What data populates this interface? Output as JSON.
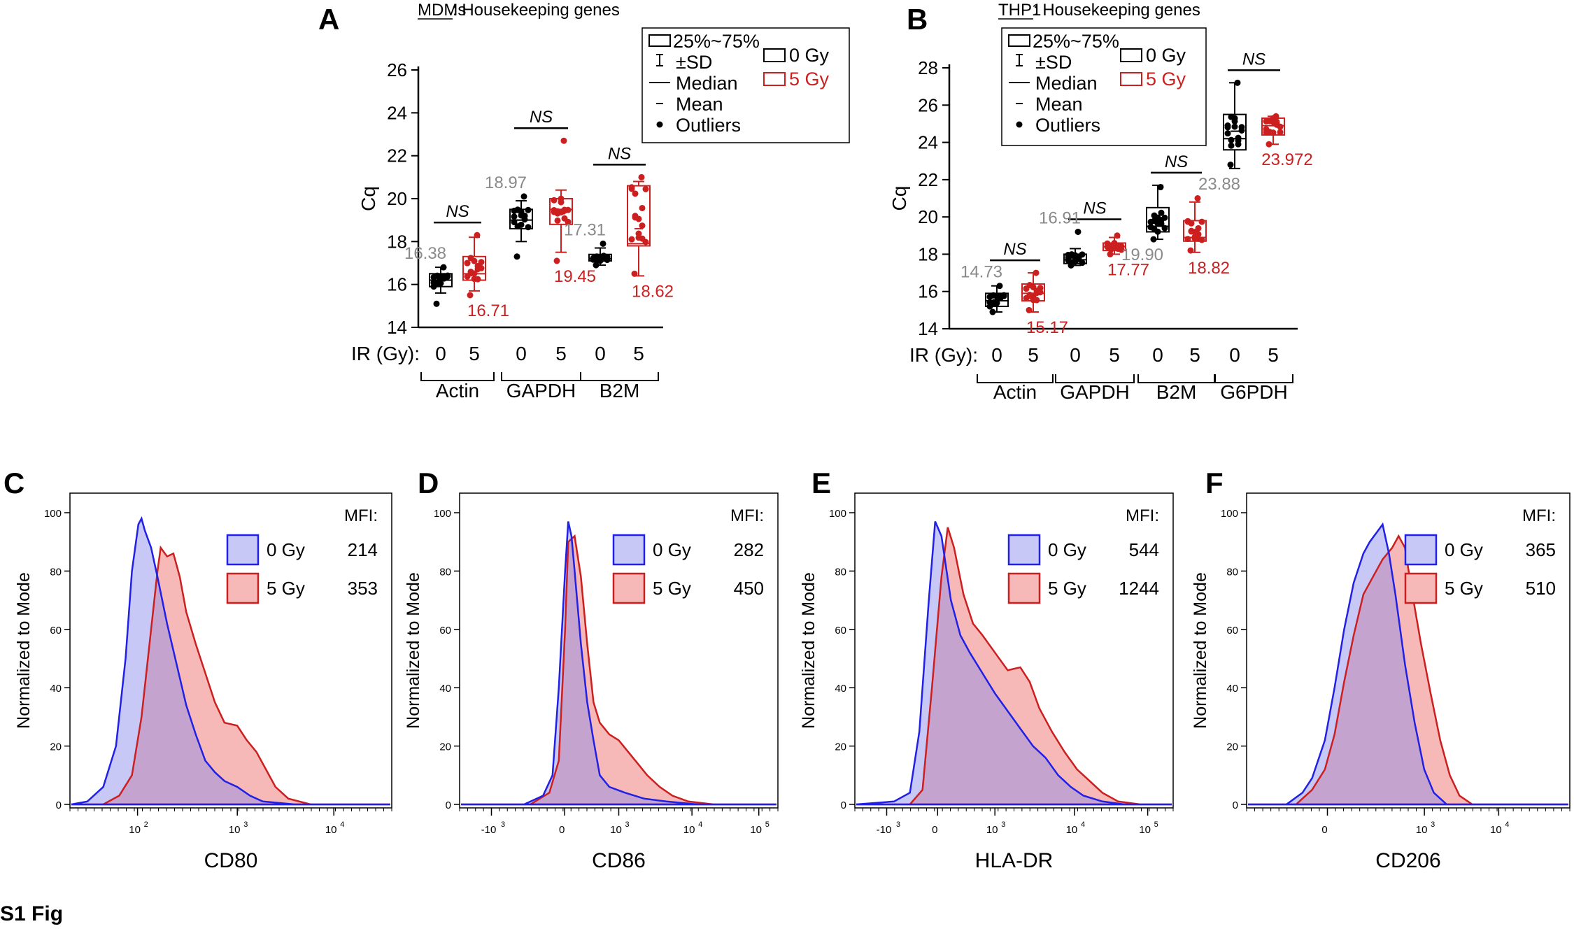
{
  "figure_label": "S1 Fig",
  "colors": {
    "black": "#000000",
    "red": "#cc1f1f",
    "gray": "#8a8a8a",
    "blue": "#2020e6",
    "blue_fill": "#c8c8f6",
    "red_fill": "#f7b8b8",
    "overlap_fill": "#c5a3cf"
  },
  "chart_data": [
    {
      "panel": "A",
      "type": "box",
      "title_underlined": "MDMs",
      "title_rest": ": Housekeeping genes",
      "ylabel": "Cq",
      "ylim": [
        14,
        26
      ],
      "yticks": [
        "14",
        "16",
        "18",
        "20",
        "22",
        "24",
        "26"
      ],
      "ir_label": "IR (Gy):",
      "dose_labels": [
        "0",
        "5"
      ],
      "legend_items": [
        "25%~75%",
        "±SD",
        "Median",
        "Mean",
        "Outliers"
      ],
      "legend_groups": [
        "0 Gy",
        "5 Gy"
      ],
      "sig_label": "NS",
      "groups": [
        {
          "gene": "Actin",
          "series": [
            {
              "dose": "0",
              "q1": 15.9,
              "q3": 16.5,
              "median": 16.2,
              "mean": 16.25,
              "sd_low": 15.6,
              "sd_high": 16.8,
              "min_pt": 15.1,
              "max_pt": 16.8,
              "annot": "16.38",
              "annot_pos": "above"
            },
            {
              "dose": "5",
              "q1": 16.2,
              "q3": 17.3,
              "median": 16.5,
              "mean": 16.6,
              "sd_low": 15.7,
              "sd_high": 18.2,
              "min_pt": 15.5,
              "max_pt": 18.3,
              "annot": "16.71",
              "annot_pos": "below"
            }
          ]
        },
        {
          "gene": "GAPDH",
          "series": [
            {
              "dose": "0",
              "q1": 18.6,
              "q3": 19.5,
              "median": 19.0,
              "mean": 19.0,
              "sd_low": 18.0,
              "sd_high": 19.9,
              "min_pt": 17.3,
              "max_pt": 20.1,
              "annot": "18.97",
              "annot_pos": "above"
            },
            {
              "dose": "5",
              "q1": 18.8,
              "q3": 20.0,
              "median": 19.5,
              "mean": 19.3,
              "sd_low": 17.5,
              "sd_high": 20.4,
              "min_pt": 17.1,
              "max_pt": 22.7,
              "annot": "19.45",
              "annot_pos": "below"
            }
          ]
        },
        {
          "gene": "B2M",
          "series": [
            {
              "dose": "0",
              "q1": 17.1,
              "q3": 17.4,
              "median": 17.2,
              "mean": 17.25,
              "sd_low": 16.9,
              "sd_high": 17.7,
              "min_pt": 16.9,
              "max_pt": 17.9,
              "annot": "17.31",
              "annot_pos": "above"
            },
            {
              "dose": "5",
              "q1": 17.8,
              "q3": 20.6,
              "median": 17.9,
              "mean": 18.6,
              "sd_low": 16.4,
              "sd_high": 20.8,
              "min_pt": 16.5,
              "max_pt": 21.0,
              "annot": "18.62",
              "annot_pos": "below"
            }
          ]
        }
      ]
    },
    {
      "panel": "B",
      "type": "box",
      "title_underlined": "THP1",
      "title_rest": ": Housekeeping genes",
      "ylabel": "Cq",
      "ylim": [
        14,
        28
      ],
      "yticks": [
        "14",
        "16",
        "18",
        "20",
        "22",
        "24",
        "26",
        "28"
      ],
      "ir_label": "IR (Gy):",
      "dose_labels": [
        "0",
        "5"
      ],
      "legend_items": [
        "25%~75%",
        "±SD",
        "Median",
        "Mean",
        "Outliers"
      ],
      "legend_groups": [
        "0 Gy",
        "5 Gy"
      ],
      "sig_label": "NS",
      "groups": [
        {
          "gene": "Actin",
          "series": [
            {
              "dose": "0",
              "q1": 15.2,
              "q3": 15.9,
              "median": 15.5,
              "mean": 15.55,
              "sd_low": 14.9,
              "sd_high": 16.3,
              "min_pt": 14.9,
              "max_pt": 16.3,
              "annot": "14.73",
              "annot_pos": "above"
            },
            {
              "dose": "5",
              "q1": 15.5,
              "q3": 16.4,
              "median": 15.9,
              "mean": 15.9,
              "sd_low": 14.9,
              "sd_high": 17.0,
              "min_pt": 15.0,
              "max_pt": 17.0,
              "annot": "15.17",
              "annot_pos": "below"
            }
          ]
        },
        {
          "gene": "GAPDH",
          "series": [
            {
              "dose": "0",
              "q1": 17.5,
              "q3": 18.0,
              "median": 17.7,
              "mean": 17.8,
              "sd_low": 17.4,
              "sd_high": 18.3,
              "min_pt": 17.4,
              "max_pt": 19.2,
              "annot": "16.91",
              "annot_pos": "above"
            },
            {
              "dose": "5",
              "q1": 18.2,
              "q3": 18.6,
              "median": 18.4,
              "mean": 18.4,
              "sd_low": 18.0,
              "sd_high": 18.9,
              "min_pt": 18.0,
              "max_pt": 19.0,
              "annot": "17.77",
              "annot_pos": "below"
            }
          ]
        },
        {
          "gene": "B2M",
          "series": [
            {
              "dose": "0",
              "q1": 19.2,
              "q3": 20.5,
              "median": 19.5,
              "mean": 19.8,
              "sd_low": 18.8,
              "sd_high": 21.7,
              "min_pt": 18.8,
              "max_pt": 21.6,
              "annot": "19.90",
              "annot_pos": "below"
            },
            {
              "dose": "5",
              "q1": 18.7,
              "q3": 19.8,
              "median": 18.9,
              "mean": 19.2,
              "sd_low": 18.1,
              "sd_high": 20.8,
              "min_pt": 18.2,
              "max_pt": 21.0,
              "annot": "18.82",
              "annot_pos": "below"
            }
          ]
        },
        {
          "gene": "G6PDH",
          "series": [
            {
              "dose": "0",
              "q1": 23.6,
              "q3": 25.5,
              "median": 24.2,
              "mean": 24.6,
              "sd_low": 22.6,
              "sd_high": 27.2,
              "min_pt": 22.8,
              "max_pt": 27.2,
              "annot": "23.88",
              "annot_pos": "below"
            },
            {
              "dose": "5",
              "q1": 24.4,
              "q3": 25.3,
              "median": 24.9,
              "mean": 24.9,
              "sd_low": 23.9,
              "sd_high": 25.4,
              "min_pt": 23.9,
              "max_pt": 25.4,
              "annot": "23.972",
              "annot_pos": "below"
            }
          ]
        }
      ]
    },
    {
      "panel": "C",
      "type": "histogram",
      "marker": "CD80",
      "ylabel": "Normalized to Mode",
      "ylim": [
        0,
        100
      ],
      "yticks": [
        "0",
        "20",
        "40",
        "60",
        "80",
        "100"
      ],
      "xticks": [
        {
          "base": "10",
          "exp": "2"
        },
        {
          "base": "10",
          "exp": "3"
        },
        {
          "base": "10",
          "exp": "4"
        }
      ],
      "xtick_pos": [
        0.21,
        0.52,
        0.82
      ],
      "mfi_label": "MFI:",
      "legend": [
        {
          "label": "0 Gy",
          "mfi": "214"
        },
        {
          "label": "5 Gy",
          "mfi": "353"
        }
      ],
      "curve_0gy": [
        [
          0.0,
          0
        ],
        [
          0.05,
          1
        ],
        [
          0.1,
          6
        ],
        [
          0.14,
          20
        ],
        [
          0.17,
          50
        ],
        [
          0.19,
          80
        ],
        [
          0.21,
          96
        ],
        [
          0.22,
          98
        ],
        [
          0.23,
          94
        ],
        [
          0.25,
          88
        ],
        [
          0.27,
          78
        ],
        [
          0.3,
          62
        ],
        [
          0.33,
          48
        ],
        [
          0.36,
          34
        ],
        [
          0.39,
          24
        ],
        [
          0.42,
          15
        ],
        [
          0.45,
          11
        ],
        [
          0.48,
          8
        ],
        [
          0.52,
          6
        ],
        [
          0.56,
          3
        ],
        [
          0.6,
          1
        ],
        [
          0.7,
          0
        ],
        [
          1.0,
          0
        ]
      ],
      "curve_5gy": [
        [
          0.0,
          0
        ],
        [
          0.1,
          0
        ],
        [
          0.15,
          3
        ],
        [
          0.19,
          10
        ],
        [
          0.22,
          30
        ],
        [
          0.25,
          60
        ],
        [
          0.27,
          80
        ],
        [
          0.28,
          88
        ],
        [
          0.3,
          85
        ],
        [
          0.32,
          86
        ],
        [
          0.34,
          78
        ],
        [
          0.36,
          66
        ],
        [
          0.39,
          55
        ],
        [
          0.42,
          45
        ],
        [
          0.45,
          35
        ],
        [
          0.48,
          28
        ],
        [
          0.52,
          27
        ],
        [
          0.55,
          22
        ],
        [
          0.58,
          18
        ],
        [
          0.61,
          12
        ],
        [
          0.64,
          6
        ],
        [
          0.68,
          2
        ],
        [
          0.75,
          0
        ],
        [
          1.0,
          0
        ]
      ]
    },
    {
      "panel": "D",
      "type": "histogram",
      "marker": "CD86",
      "ylabel": "Normalized to Mode",
      "ylim": [
        0,
        100
      ],
      "yticks": [
        "0",
        "20",
        "40",
        "60",
        "80",
        "100"
      ],
      "xticks": [
        {
          "base": "-10",
          "exp": "3"
        },
        {
          "base": "0",
          "exp": ""
        },
        {
          "base": "10",
          "exp": "3"
        },
        {
          "base": "10",
          "exp": "4"
        },
        {
          "base": "10",
          "exp": "5"
        }
      ],
      "xtick_pos": [
        0.1,
        0.33,
        0.5,
        0.73,
        0.94
      ],
      "mfi_label": "MFI:",
      "legend": [
        {
          "label": "0 Gy",
          "mfi": "282"
        },
        {
          "label": "5 Gy",
          "mfi": "450"
        }
      ],
      "curve_0gy": [
        [
          0.0,
          0
        ],
        [
          0.2,
          0
        ],
        [
          0.26,
          3
        ],
        [
          0.29,
          10
        ],
        [
          0.31,
          40
        ],
        [
          0.33,
          80
        ],
        [
          0.34,
          97
        ],
        [
          0.35,
          92
        ],
        [
          0.36,
          80
        ],
        [
          0.38,
          55
        ],
        [
          0.4,
          35
        ],
        [
          0.42,
          22
        ],
        [
          0.44,
          10
        ],
        [
          0.47,
          6
        ],
        [
          0.52,
          4
        ],
        [
          0.58,
          2
        ],
        [
          0.65,
          1
        ],
        [
          0.75,
          0
        ],
        [
          1.0,
          0
        ]
      ],
      "curve_5gy": [
        [
          0.0,
          0
        ],
        [
          0.22,
          0
        ],
        [
          0.28,
          4
        ],
        [
          0.31,
          15
        ],
        [
          0.33,
          60
        ],
        [
          0.34,
          90
        ],
        [
          0.36,
          92
        ],
        [
          0.38,
          78
        ],
        [
          0.4,
          55
        ],
        [
          0.42,
          35
        ],
        [
          0.44,
          28
        ],
        [
          0.47,
          24
        ],
        [
          0.5,
          22
        ],
        [
          0.53,
          18
        ],
        [
          0.56,
          14
        ],
        [
          0.59,
          10
        ],
        [
          0.63,
          6
        ],
        [
          0.67,
          3
        ],
        [
          0.72,
          1
        ],
        [
          0.8,
          0
        ],
        [
          1.0,
          0
        ]
      ]
    },
    {
      "panel": "E",
      "type": "histogram",
      "marker": "HLA-DR",
      "ylabel": "Normalized to Mode",
      "ylim": [
        0,
        100
      ],
      "yticks": [
        "0",
        "20",
        "40",
        "60",
        "80",
        "100"
      ],
      "xticks": [
        {
          "base": "-10",
          "exp": "3"
        },
        {
          "base": "0",
          "exp": ""
        },
        {
          "base": "10",
          "exp": "3"
        },
        {
          "base": "10",
          "exp": "4"
        },
        {
          "base": "10",
          "exp": "5"
        }
      ],
      "xtick_pos": [
        0.1,
        0.26,
        0.44,
        0.69,
        0.92
      ],
      "mfi_label": "MFI:",
      "legend": [
        {
          "label": "0 Gy",
          "mfi": "544"
        },
        {
          "label": "5 Gy",
          "mfi": "1244"
        }
      ],
      "curve_0gy": [
        [
          0.0,
          0
        ],
        [
          0.12,
          1
        ],
        [
          0.17,
          4
        ],
        [
          0.2,
          25
        ],
        [
          0.23,
          70
        ],
        [
          0.25,
          97
        ],
        [
          0.27,
          92
        ],
        [
          0.3,
          70
        ],
        [
          0.33,
          58
        ],
        [
          0.36,
          52
        ],
        [
          0.4,
          45
        ],
        [
          0.44,
          38
        ],
        [
          0.48,
          32
        ],
        [
          0.52,
          26
        ],
        [
          0.56,
          20
        ],
        [
          0.6,
          16
        ],
        [
          0.64,
          10
        ],
        [
          0.68,
          6
        ],
        [
          0.72,
          3
        ],
        [
          0.78,
          1
        ],
        [
          0.85,
          0
        ],
        [
          1.0,
          0
        ]
      ],
      "curve_5gy": [
        [
          0.0,
          0
        ],
        [
          0.17,
          0
        ],
        [
          0.21,
          5
        ],
        [
          0.24,
          40
        ],
        [
          0.27,
          78
        ],
        [
          0.29,
          95
        ],
        [
          0.31,
          88
        ],
        [
          0.34,
          72
        ],
        [
          0.37,
          62
        ],
        [
          0.4,
          58
        ],
        [
          0.44,
          52
        ],
        [
          0.48,
          46
        ],
        [
          0.52,
          47
        ],
        [
          0.55,
          42
        ],
        [
          0.58,
          33
        ],
        [
          0.62,
          25
        ],
        [
          0.66,
          18
        ],
        [
          0.7,
          12
        ],
        [
          0.74,
          8
        ],
        [
          0.78,
          4
        ],
        [
          0.83,
          1
        ],
        [
          0.9,
          0
        ],
        [
          1.0,
          0
        ]
      ]
    },
    {
      "panel": "F",
      "type": "histogram",
      "marker": "CD206",
      "ylabel": "Normalized to Mode",
      "ylim": [
        0,
        100
      ],
      "yticks": [
        "0",
        "20",
        "40",
        "60",
        "80",
        "100"
      ],
      "xticks": [
        {
          "base": "0",
          "exp": ""
        },
        {
          "base": "10",
          "exp": "3"
        },
        {
          "base": "10",
          "exp": "4"
        }
      ],
      "xtick_pos": [
        0.25,
        0.55,
        0.78
      ],
      "mfi_label": "MFI:",
      "legend": [
        {
          "label": "0 Gy",
          "mfi": "365"
        },
        {
          "label": "5 Gy",
          "mfi": "510"
        }
      ],
      "curve_0gy": [
        [
          0.0,
          0
        ],
        [
          0.12,
          0
        ],
        [
          0.17,
          4
        ],
        [
          0.2,
          9
        ],
        [
          0.24,
          22
        ],
        [
          0.27,
          40
        ],
        [
          0.3,
          60
        ],
        [
          0.33,
          76
        ],
        [
          0.36,
          86
        ],
        [
          0.38,
          90
        ],
        [
          0.4,
          93
        ],
        [
          0.42,
          96
        ],
        [
          0.44,
          86
        ],
        [
          0.46,
          72
        ],
        [
          0.49,
          48
        ],
        [
          0.52,
          28
        ],
        [
          0.55,
          12
        ],
        [
          0.58,
          4
        ],
        [
          0.62,
          0
        ],
        [
          1.0,
          0
        ]
      ],
      "curve_5gy": [
        [
          0.0,
          0
        ],
        [
          0.15,
          0
        ],
        [
          0.2,
          5
        ],
        [
          0.24,
          12
        ],
        [
          0.27,
          24
        ],
        [
          0.3,
          42
        ],
        [
          0.33,
          58
        ],
        [
          0.36,
          72
        ],
        [
          0.39,
          78
        ],
        [
          0.42,
          84
        ],
        [
          0.45,
          88
        ],
        [
          0.47,
          92
        ],
        [
          0.49,
          88
        ],
        [
          0.51,
          74
        ],
        [
          0.54,
          55
        ],
        [
          0.57,
          38
        ],
        [
          0.6,
          22
        ],
        [
          0.63,
          10
        ],
        [
          0.66,
          3
        ],
        [
          0.7,
          0
        ],
        [
          1.0,
          0
        ]
      ]
    }
  ]
}
